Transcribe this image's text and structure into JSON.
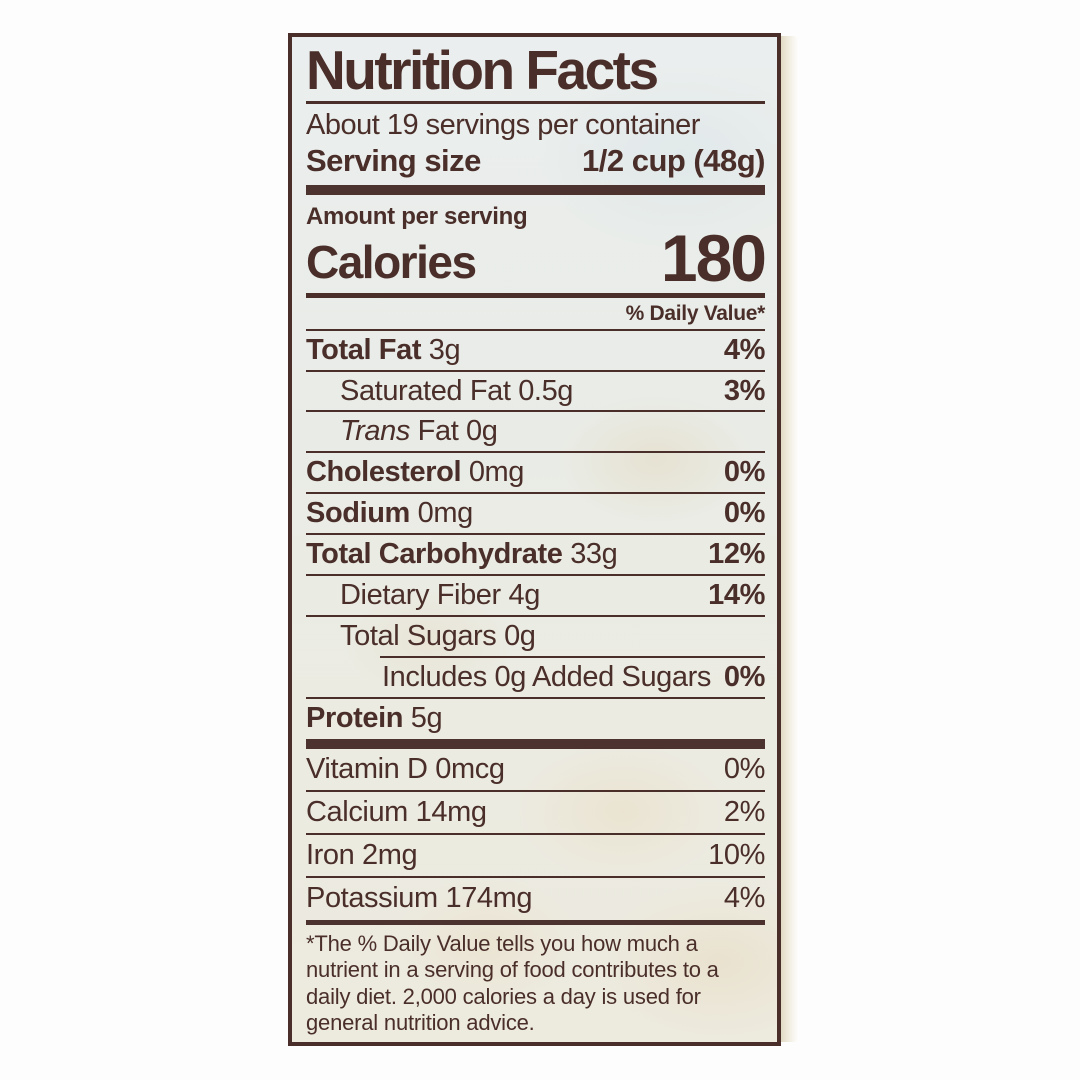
{
  "colors": {
    "ink": "#4a2e29",
    "bar": "#4c3330",
    "label_bg": "#eaede8"
  },
  "header": {
    "title": "Nutrition Facts",
    "servings_per_container": "About 19 servings per container",
    "serving_size_label": "Serving size",
    "serving_size_value": "1/2 cup (48g)"
  },
  "calories": {
    "amount_per_serving": "Amount per serving",
    "label": "Calories",
    "value": "180"
  },
  "daily_value_header": "% Daily Value*",
  "rows": [
    {
      "name": "Total Fat",
      "name_bold": true,
      "amount": "3g",
      "dv": "4%",
      "dv_bold": true,
      "indent": 0
    },
    {
      "name": "Saturated Fat",
      "name_bold": false,
      "amount": "0.5g",
      "dv": "3%",
      "dv_bold": true,
      "indent": 1
    },
    {
      "prefix_italic": "Trans",
      "name": "Fat",
      "name_bold": false,
      "amount": "0g",
      "dv": "",
      "indent": 1
    },
    {
      "name": "Cholesterol",
      "name_bold": true,
      "amount": "0mg",
      "dv": "0%",
      "dv_bold": true,
      "indent": 0
    },
    {
      "name": "Sodium",
      "name_bold": true,
      "amount": "0mg",
      "dv": "0%",
      "dv_bold": true,
      "indent": 0
    },
    {
      "name": "Total Carbohydrate",
      "name_bold": true,
      "amount": "33g",
      "dv": "12%",
      "dv_bold": true,
      "indent": 0
    },
    {
      "name": "Dietary Fiber",
      "name_bold": false,
      "amount": "4g",
      "dv": "14%",
      "dv_bold": true,
      "indent": 1
    },
    {
      "name": "Total Sugars",
      "name_bold": false,
      "amount": "0g",
      "dv": "",
      "indent": 1
    },
    {
      "name": "Includes 0g Added Sugars",
      "name_bold": false,
      "amount": "",
      "dv": "0%",
      "dv_bold": true,
      "indent": 2,
      "rule_indented": true
    },
    {
      "name": "Protein",
      "name_bold": true,
      "amount": "5g",
      "dv": "",
      "indent": 0
    }
  ],
  "vitamins": [
    {
      "name": "Vitamin D",
      "amount": "0mcg",
      "dv": "0%"
    },
    {
      "name": "Calcium",
      "amount": "14mg",
      "dv": "2%"
    },
    {
      "name": "Iron",
      "amount": "2mg",
      "dv": "10%"
    },
    {
      "name": "Potassium",
      "amount": "174mg",
      "dv": "4%"
    }
  ],
  "footnote": "*The % Daily Value tells you how much a nutrient in a serving of food contributes to a daily diet. 2,000 calories a day is used for general nutrition advice."
}
